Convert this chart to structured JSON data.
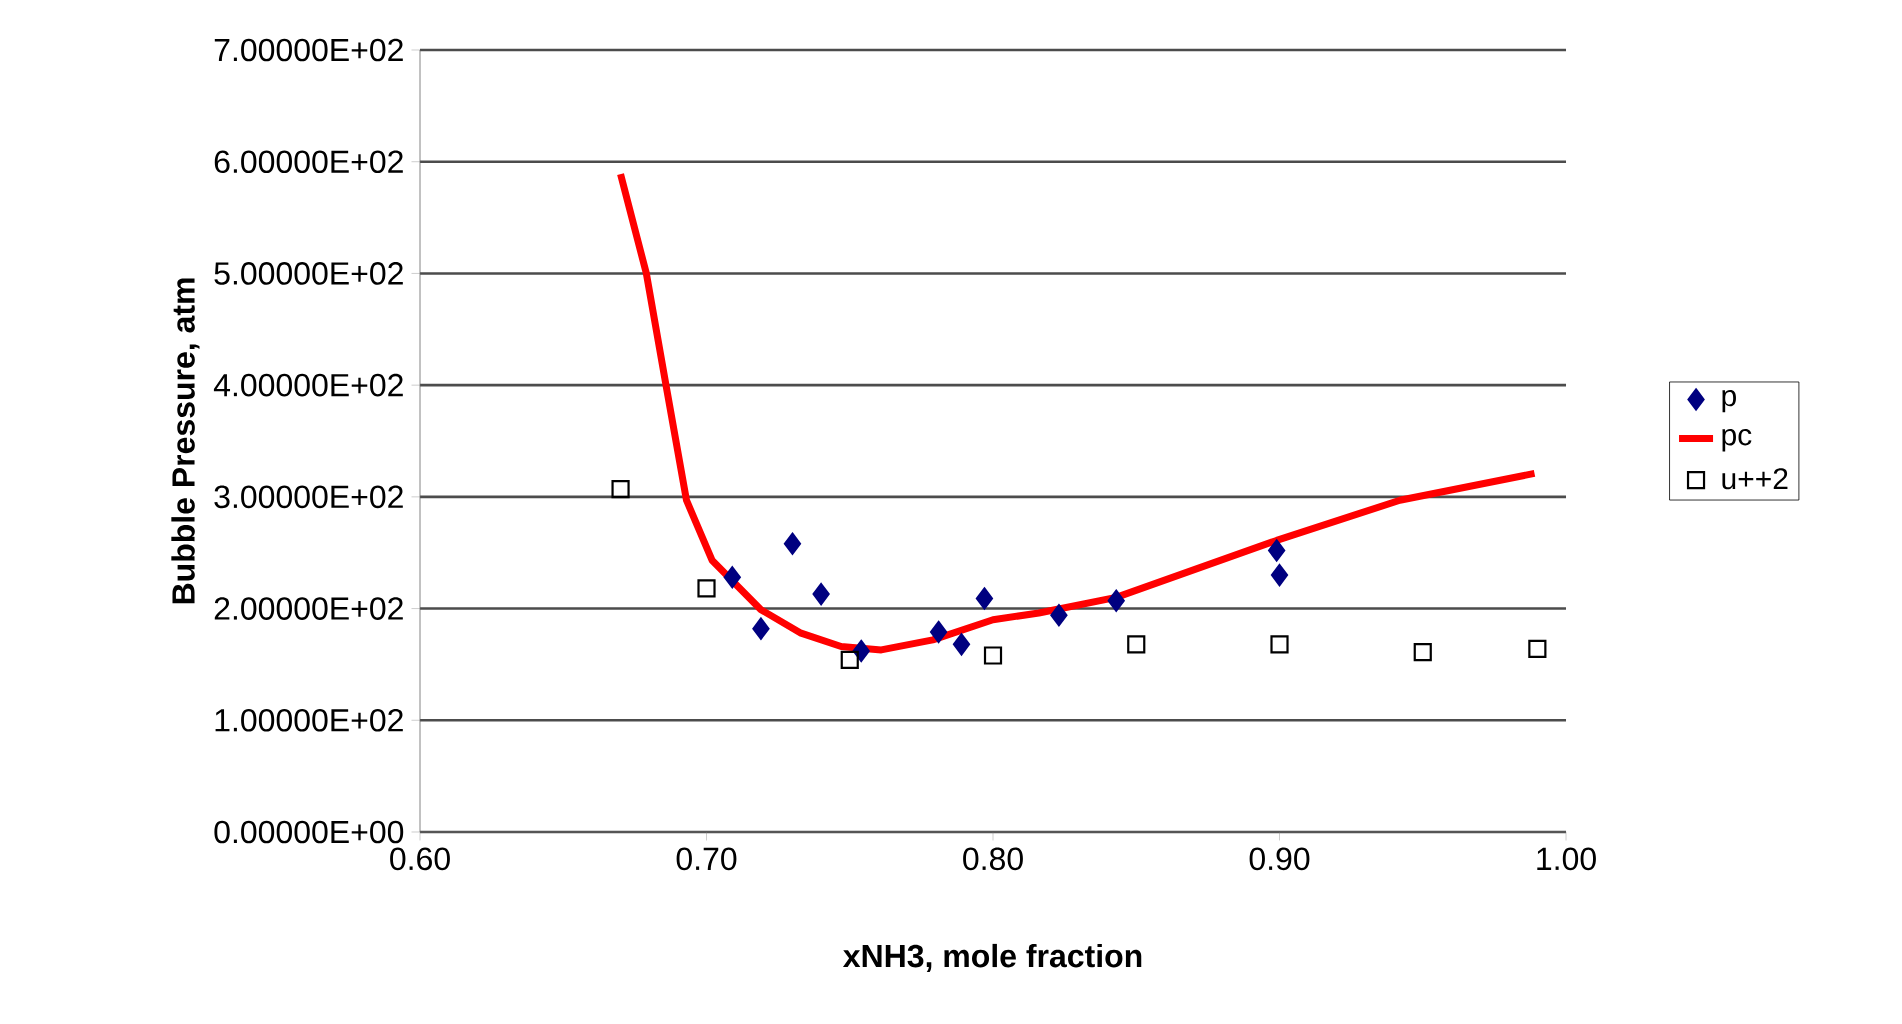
{
  "chart_data": {
    "type": "scatter",
    "xlabel": "xNH3, mole fraction",
    "ylabel": "Bubble Pressure, atm",
    "xlim": [
      0.6,
      1.0
    ],
    "ylim": [
      0,
      700
    ],
    "xticks": [
      {
        "value": 0.6,
        "label": "0.60"
      },
      {
        "value": 0.7,
        "label": "0.70"
      },
      {
        "value": 0.8,
        "label": "0.80"
      },
      {
        "value": 0.9,
        "label": "0.90"
      },
      {
        "value": 1.0,
        "label": "1.00"
      }
    ],
    "yticks": [
      {
        "value": 0,
        "label": "0.00000E+00"
      },
      {
        "value": 100,
        "label": "1.00000E+02"
      },
      {
        "value": 200,
        "label": "2.00000E+02"
      },
      {
        "value": 300,
        "label": "3.00000E+02"
      },
      {
        "value": 400,
        "label": "4.00000E+02"
      },
      {
        "value": 500,
        "label": "5.00000E+02"
      },
      {
        "value": 600,
        "label": "6.00000E+02"
      },
      {
        "value": 700,
        "label": "7.00000E+02"
      }
    ],
    "grid": "y",
    "legend": "right",
    "series": [
      {
        "name": "p",
        "marker": "diamond",
        "color": "#000080",
        "x": [
          0.709,
          0.719,
          0.73,
          0.74,
          0.754,
          0.781,
          0.789,
          0.797,
          0.823,
          0.843,
          0.899,
          0.9
        ],
        "values": [
          228,
          182,
          258,
          213,
          162,
          179,
          168,
          209,
          194,
          207,
          252,
          230
        ]
      },
      {
        "name": "pc",
        "type": "line",
        "marker": "none",
        "line_style": "solid",
        "color": "#ff0000",
        "x": [
          0.67,
          0.679,
          0.686,
          0.693,
          0.702,
          0.719,
          0.733,
          0.747,
          0.761,
          0.779,
          0.8,
          0.816,
          0.843,
          0.899,
          0.942,
          0.989
        ],
        "values": [
          589,
          500,
          398,
          297,
          243,
          199,
          178,
          166,
          163,
          172,
          190,
          196,
          210,
          261,
          297,
          321
        ]
      },
      {
        "name": "u++2",
        "marker": "square",
        "color": "#000000",
        "x": [
          0.67,
          0.7,
          0.75,
          0.8,
          0.85,
          0.9,
          0.95,
          0.99
        ],
        "values": [
          307,
          218,
          154,
          158,
          168,
          168,
          161,
          164
        ]
      }
    ]
  }
}
